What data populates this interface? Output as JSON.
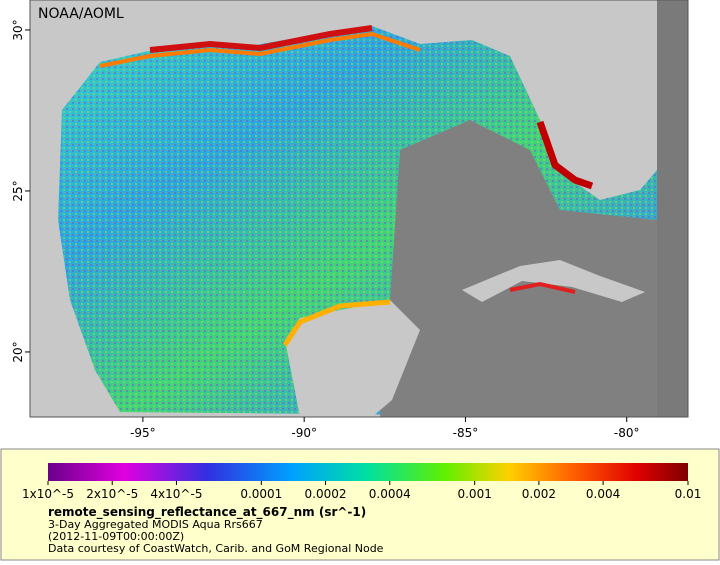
{
  "watermark": "NOAA/AOML",
  "map": {
    "lon_range": [
      -98.5,
      -78.1
    ],
    "lat_range": [
      17.98,
      30.93
    ],
    "lon_ticks": [
      {
        "value": -95,
        "label": "-95°"
      },
      {
        "value": -90,
        "label": "-90°"
      },
      {
        "value": -85,
        "label": "-85°"
      },
      {
        "value": -80,
        "label": "-80°"
      }
    ],
    "lat_ticks": [
      {
        "value": 20,
        "label": "20°"
      },
      {
        "value": 25,
        "label": "25°"
      },
      {
        "value": 30,
        "label": "30°"
      }
    ]
  },
  "colorbar": {
    "scale": "log",
    "range": [
      1e-05,
      0.01
    ],
    "ticks": [
      {
        "value": 1e-05,
        "label": "1x10^-5"
      },
      {
        "value": 2e-05,
        "label": "2x10^-5"
      },
      {
        "value": 4e-05,
        "label": "4x10^-5"
      },
      0.0001,
      0.0002,
      0.0004,
      0.001,
      0.002,
      0.004,
      0.01
    ]
  },
  "legend": {
    "title": "remote_sensing_reflectance_at_667_nm (sr^-1)",
    "lines": [
      "3-Day Aggregated MODIS Aqua Rrs667",
      "(2012-11-09T00:00:00Z)",
      "Data courtesy of CoastWatch, Carib. and GoM Regional Node"
    ]
  }
}
